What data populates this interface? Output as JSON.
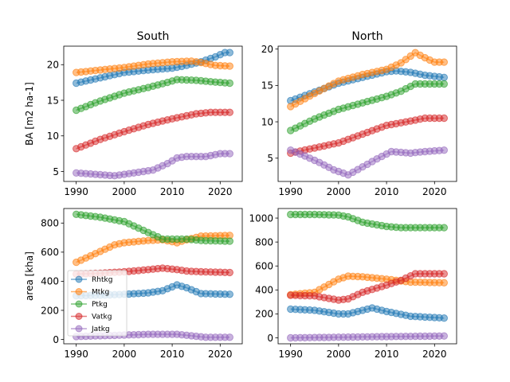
{
  "chart_data": [
    {
      "type": "line",
      "title": "South",
      "ylabel": "BA [m2 ha-1]",
      "xlim": [
        1987.4,
        2024.6
      ],
      "ylim": [
        3.6,
        22.6
      ],
      "xticks": [
        1990,
        2000,
        2010,
        2020
      ],
      "yticks": [
        5,
        10,
        15,
        20
      ],
      "series": [
        {
          "name": "Rhtkg",
          "color": "#1f77b4",
          "points": [
            [
              1990,
              17.4
            ],
            [
              2000,
              18.9
            ],
            [
              2006,
              19.3
            ],
            [
              2010,
              19.5
            ],
            [
              2013,
              19.9
            ],
            [
              2016,
              20.4
            ],
            [
              2019,
              21.1
            ],
            [
              2021,
              21.7
            ],
            [
              2022,
              21.7
            ]
          ]
        },
        {
          "name": "Mtkg",
          "color": "#ff7f0e",
          "points": [
            [
              1990,
              18.9
            ],
            [
              2000,
              19.6
            ],
            [
              2005,
              20.1
            ],
            [
              2010,
              20.4
            ],
            [
              2014,
              20.5
            ],
            [
              2016,
              20.3
            ],
            [
              2019,
              19.9
            ],
            [
              2022,
              19.8
            ]
          ]
        },
        {
          "name": "Ptkg",
          "color": "#2ca02c",
          "points": [
            [
              1990,
              13.6
            ],
            [
              1995,
              14.9
            ],
            [
              2000,
              16.0
            ],
            [
              2005,
              16.8
            ],
            [
              2009,
              17.5
            ],
            [
              2011,
              17.9
            ],
            [
              2015,
              17.8
            ],
            [
              2018,
              17.6
            ],
            [
              2022,
              17.4
            ]
          ]
        },
        {
          "name": "Vatkg",
          "color": "#d62728",
          "points": [
            [
              1990,
              8.2
            ],
            [
              1995,
              9.5
            ],
            [
              2000,
              10.6
            ],
            [
              2005,
              11.6
            ],
            [
              2010,
              12.4
            ],
            [
              2015,
              13.1
            ],
            [
              2018,
              13.3
            ],
            [
              2022,
              13.3
            ]
          ]
        },
        {
          "name": "Jatkg",
          "color": "#9467bd",
          "points": [
            [
              1990,
              4.8
            ],
            [
              1994,
              4.6
            ],
            [
              1998,
              4.4
            ],
            [
              2002,
              4.8
            ],
            [
              2006,
              5.2
            ],
            [
              2009,
              6.1
            ],
            [
              2011,
              6.9
            ],
            [
              2013,
              7.1
            ],
            [
              2017,
              7.1
            ],
            [
              2020,
              7.5
            ],
            [
              2022,
              7.5
            ]
          ]
        }
      ]
    },
    {
      "type": "line",
      "title": "North",
      "ylabel": "",
      "xlim": [
        1987.4,
        2024.6
      ],
      "ylim": [
        1.8,
        20.4
      ],
      "xticks": [
        1990,
        2000,
        2010,
        2020
      ],
      "yticks": [
        5,
        10,
        15,
        20
      ],
      "series": [
        {
          "name": "Rhtkg",
          "color": "#1f77b4",
          "points": [
            [
              1990,
              12.9
            ],
            [
              1995,
              14.1
            ],
            [
              2000,
              15.3
            ],
            [
              2005,
              16.1
            ],
            [
              2010,
              16.9
            ],
            [
              2012,
              17.0
            ],
            [
              2015,
              16.8
            ],
            [
              2018,
              16.4
            ],
            [
              2022,
              16.1
            ]
          ]
        },
        {
          "name": "Mtkg",
          "color": "#ff7f0e",
          "points": [
            [
              1990,
              12.1
            ],
            [
              1995,
              13.9
            ],
            [
              2000,
              15.6
            ],
            [
              2005,
              16.5
            ],
            [
              2010,
              17.2
            ],
            [
              2013,
              18.1
            ],
            [
              2016,
              19.5
            ],
            [
              2018,
              18.8
            ],
            [
              2020,
              18.2
            ],
            [
              2022,
              18.2
            ]
          ]
        },
        {
          "name": "Ptkg",
          "color": "#2ca02c",
          "points": [
            [
              1990,
              8.8
            ],
            [
              1995,
              10.4
            ],
            [
              2000,
              11.7
            ],
            [
              2005,
              12.6
            ],
            [
              2010,
              13.5
            ],
            [
              2013,
              14.2
            ],
            [
              2016,
              15.2
            ],
            [
              2022,
              15.2
            ]
          ]
        },
        {
          "name": "Vatkg",
          "color": "#d62728",
          "points": [
            [
              1990,
              5.7
            ],
            [
              1995,
              6.4
            ],
            [
              2000,
              7.1
            ],
            [
              2005,
              8.3
            ],
            [
              2010,
              9.5
            ],
            [
              2015,
              10.1
            ],
            [
              2018,
              10.5
            ],
            [
              2022,
              10.5
            ]
          ]
        },
        {
          "name": "Jatkg",
          "color": "#9467bd",
          "points": [
            [
              1990,
              6.1
            ],
            [
              1993,
              5.3
            ],
            [
              1996,
              4.4
            ],
            [
              1999,
              3.4
            ],
            [
              2002,
              2.7
            ],
            [
              2005,
              3.8
            ],
            [
              2008,
              4.9
            ],
            [
              2011,
              5.9
            ],
            [
              2015,
              5.7
            ],
            [
              2018,
              5.9
            ],
            [
              2022,
              6.1
            ]
          ]
        }
      ]
    },
    {
      "type": "line",
      "title": "",
      "ylabel": "area [kha]",
      "xlim": [
        1987.4,
        2024.6
      ],
      "ylim": [
        -30,
        900
      ],
      "xticks": [
        1990,
        2000,
        2010,
        2020
      ],
      "yticks": [
        0,
        200,
        400,
        600,
        800
      ],
      "legend": "center-left",
      "series": [
        {
          "name": "Rhtkg",
          "color": "#1f77b4",
          "points": [
            [
              1990,
              300
            ],
            [
              1996,
              305
            ],
            [
              2000,
              310
            ],
            [
              2005,
              320
            ],
            [
              2008,
              335
            ],
            [
              2011,
              375
            ],
            [
              2013,
              355
            ],
            [
              2016,
              315
            ],
            [
              2022,
              310
            ]
          ]
        },
        {
          "name": "Mtkg",
          "color": "#ff7f0e",
          "points": [
            [
              1990,
              530
            ],
            [
              1994,
              590
            ],
            [
              1998,
              650
            ],
            [
              2000,
              665
            ],
            [
              2005,
              680
            ],
            [
              2008,
              685
            ],
            [
              2011,
              665
            ],
            [
              2013,
              685
            ],
            [
              2016,
              710
            ],
            [
              2022,
              715
            ]
          ]
        },
        {
          "name": "Ptkg",
          "color": "#2ca02c",
          "points": [
            [
              1990,
              860
            ],
            [
              1995,
              840
            ],
            [
              2000,
              810
            ],
            [
              2005,
              735
            ],
            [
              2008,
              690
            ],
            [
              2011,
              690
            ],
            [
              2013,
              690
            ],
            [
              2016,
              680
            ],
            [
              2022,
              675
            ]
          ]
        },
        {
          "name": "Vatkg",
          "color": "#d62728",
          "points": [
            [
              1990,
              450
            ],
            [
              1995,
              455
            ],
            [
              2000,
              465
            ],
            [
              2005,
              480
            ],
            [
              2008,
              490
            ],
            [
              2011,
              480
            ],
            [
              2013,
              470
            ],
            [
              2016,
              465
            ],
            [
              2022,
              460
            ]
          ]
        },
        {
          "name": "Jatkg",
          "color": "#9467bd",
          "points": [
            [
              1990,
              20
            ],
            [
              1995,
              25
            ],
            [
              2000,
              30
            ],
            [
              2005,
              35
            ],
            [
              2011,
              35
            ],
            [
              2014,
              25
            ],
            [
              2017,
              15
            ],
            [
              2022,
              15
            ]
          ]
        }
      ]
    },
    {
      "type": "line",
      "title": "",
      "ylabel": "",
      "xlim": [
        1987.4,
        2024.6
      ],
      "ylim": [
        -50,
        1080
      ],
      "xticks": [
        1990,
        2000,
        2010,
        2020
      ],
      "yticks": [
        0,
        200,
        400,
        600,
        800,
        1000
      ],
      "series": [
        {
          "name": "Rhtkg",
          "color": "#1f77b4",
          "points": [
            [
              1990,
              240
            ],
            [
              1995,
              230
            ],
            [
              2000,
              200
            ],
            [
              2002,
              200
            ],
            [
              2005,
              230
            ],
            [
              2007,
              250
            ],
            [
              2010,
              220
            ],
            [
              2015,
              180
            ],
            [
              2022,
              165
            ]
          ]
        },
        {
          "name": "Mtkg",
          "color": "#ff7f0e",
          "points": [
            [
              1990,
              360
            ],
            [
              1995,
              380
            ],
            [
              2000,
              490
            ],
            [
              2002,
              515
            ],
            [
              2005,
              510
            ],
            [
              2010,
              490
            ],
            [
              2015,
              465
            ],
            [
              2022,
              460
            ]
          ]
        },
        {
          "name": "Ptkg",
          "color": "#2ca02c",
          "points": [
            [
              1990,
              1030
            ],
            [
              1995,
              1030
            ],
            [
              2000,
              1025
            ],
            [
              2002,
              1010
            ],
            [
              2005,
              965
            ],
            [
              2010,
              930
            ],
            [
              2013,
              920
            ],
            [
              2022,
              920
            ]
          ]
        },
        {
          "name": "Vatkg",
          "color": "#d62728",
          "points": [
            [
              1990,
              355
            ],
            [
              1995,
              350
            ],
            [
              2000,
              315
            ],
            [
              2002,
              325
            ],
            [
              2005,
              380
            ],
            [
              2010,
              440
            ],
            [
              2013,
              480
            ],
            [
              2016,
              535
            ],
            [
              2022,
              535
            ]
          ]
        },
        {
          "name": "Jatkg",
          "color": "#9467bd",
          "points": [
            [
              1990,
              0
            ],
            [
              2000,
              5
            ],
            [
              2010,
              10
            ],
            [
              2022,
              15
            ]
          ]
        }
      ]
    }
  ]
}
